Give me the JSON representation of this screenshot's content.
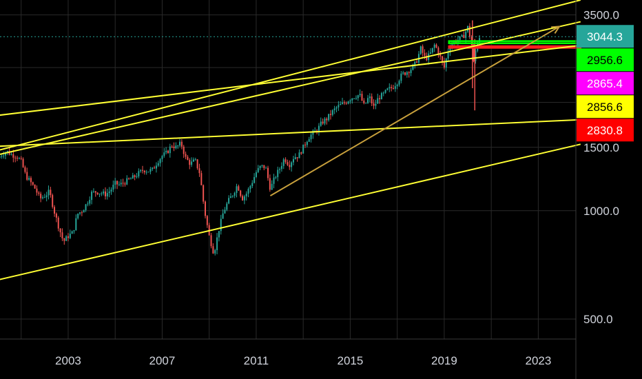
{
  "chart_data": {
    "type": "candlestick",
    "y_scale": "log",
    "ylim": [
      440,
      3850
    ],
    "xlim": [
      2000.1,
      2024.6
    ],
    "grid": true,
    "colors": {
      "background": "#000000",
      "grid": "#2a2a2a",
      "up_candle": "#26a69a",
      "down_candle": "#ef5350",
      "trendline": "#ffff33",
      "channel_arrow": "#c8a03c",
      "last_price_line": "#26a69a"
    },
    "y_ticks": [
      {
        "value": 3500,
        "label": "3500.0"
      },
      {
        "value": 1500,
        "label": "1500.0"
      },
      {
        "value": 1000,
        "label": "1000.0"
      },
      {
        "value": 500,
        "label": "500.0"
      }
    ],
    "x_ticks": [
      {
        "value": 2003,
        "label": "2003"
      },
      {
        "value": 2007,
        "label": "2007"
      },
      {
        "value": 2011,
        "label": "2011"
      },
      {
        "value": 2015,
        "label": "2015"
      },
      {
        "value": 2019,
        "label": "2019"
      },
      {
        "value": 2023,
        "label": "2023"
      }
    ],
    "price_badges": [
      {
        "value": 3044.3,
        "label": "3044.3",
        "bg": "#26a69a",
        "fg": "#ffffff"
      },
      {
        "value": 2956.6,
        "label": "2956.6",
        "bg": "#00ff00",
        "fg": "#000000"
      },
      {
        "value": 2865.4,
        "label": "2865.4",
        "bg": "#ff00ff",
        "fg": "#ffffff"
      },
      {
        "value": 2856.6,
        "label": "2856.6",
        "bg": "#ffff00",
        "fg": "#000000"
      },
      {
        "value": 2830.8,
        "label": "2830.8",
        "bg": "#ff0000",
        "fg": "#ffffff"
      }
    ],
    "last_price": 3044.3,
    "monthly_close": [
      [
        2000.0,
        1400
      ],
      [
        2000.2,
        1440
      ],
      [
        2000.4,
        1460
      ],
      [
        2000.6,
        1430
      ],
      [
        2000.8,
        1420
      ],
      [
        2001.0,
        1370
      ],
      [
        2001.2,
        1250
      ],
      [
        2001.4,
        1200
      ],
      [
        2001.6,
        1150
      ],
      [
        2001.8,
        1080
      ],
      [
        2002.0,
        1100
      ],
      [
        2002.2,
        1130
      ],
      [
        2002.4,
        1000
      ],
      [
        2002.6,
        900
      ],
      [
        2002.8,
        820
      ],
      [
        2003.0,
        850
      ],
      [
        2003.2,
        870
      ],
      [
        2003.4,
        980
      ],
      [
        2003.6,
        1000
      ],
      [
        2003.8,
        1050
      ],
      [
        2004.0,
        1120
      ],
      [
        2004.2,
        1130
      ],
      [
        2004.4,
        1120
      ],
      [
        2004.6,
        1110
      ],
      [
        2004.8,
        1140
      ],
      [
        2005.0,
        1190
      ],
      [
        2005.2,
        1180
      ],
      [
        2005.4,
        1200
      ],
      [
        2005.6,
        1220
      ],
      [
        2005.8,
        1240
      ],
      [
        2006.0,
        1270
      ],
      [
        2006.2,
        1300
      ],
      [
        2006.4,
        1290
      ],
      [
        2006.6,
        1300
      ],
      [
        2006.8,
        1370
      ],
      [
        2007.0,
        1420
      ],
      [
        2007.2,
        1450
      ],
      [
        2007.4,
        1520
      ],
      [
        2007.6,
        1500
      ],
      [
        2007.8,
        1540
      ],
      [
        2008.0,
        1400
      ],
      [
        2008.2,
        1350
      ],
      [
        2008.4,
        1380
      ],
      [
        2008.6,
        1270
      ],
      [
        2008.8,
        1000
      ],
      [
        2009.0,
        850
      ],
      [
        2009.2,
        760
      ],
      [
        2009.4,
        880
      ],
      [
        2009.6,
        990
      ],
      [
        2009.8,
        1060
      ],
      [
        2010.0,
        1110
      ],
      [
        2010.2,
        1180
      ],
      [
        2010.4,
        1080
      ],
      [
        2010.6,
        1120
      ],
      [
        2010.8,
        1190
      ],
      [
        2011.0,
        1280
      ],
      [
        2011.2,
        1330
      ],
      [
        2011.4,
        1320
      ],
      [
        2011.6,
        1150
      ],
      [
        2011.8,
        1240
      ],
      [
        2012.0,
        1310
      ],
      [
        2012.2,
        1400
      ],
      [
        2012.4,
        1340
      ],
      [
        2012.6,
        1410
      ],
      [
        2012.8,
        1420
      ],
      [
        2013.0,
        1500
      ],
      [
        2013.2,
        1590
      ],
      [
        2013.4,
        1640
      ],
      [
        2013.6,
        1680
      ],
      [
        2013.8,
        1760
      ],
      [
        2014.0,
        1800
      ],
      [
        2014.2,
        1870
      ],
      [
        2014.4,
        1930
      ],
      [
        2014.6,
        1970
      ],
      [
        2014.8,
        2000
      ],
      [
        2015.0,
        2050
      ],
      [
        2015.2,
        2080
      ],
      [
        2015.4,
        2100
      ],
      [
        2015.6,
        1950
      ],
      [
        2015.8,
        2080
      ],
      [
        2016.0,
        1940
      ],
      [
        2016.2,
        2060
      ],
      [
        2016.4,
        2100
      ],
      [
        2016.6,
        2170
      ],
      [
        2016.8,
        2200
      ],
      [
        2017.0,
        2280
      ],
      [
        2017.2,
        2390
      ],
      [
        2017.4,
        2430
      ],
      [
        2017.6,
        2480
      ],
      [
        2017.8,
        2580
      ],
      [
        2018.0,
        2820
      ],
      [
        2018.2,
        2640
      ],
      [
        2018.4,
        2720
      ],
      [
        2018.6,
        2900
      ],
      [
        2018.8,
        2700
      ],
      [
        2019.0,
        2500
      ],
      [
        2019.2,
        2850
      ],
      [
        2019.4,
        2940
      ],
      [
        2019.6,
        2990
      ],
      [
        2019.8,
        3040
      ],
      [
        2020.0,
        3230
      ],
      [
        2020.15,
        2950
      ],
      [
        2020.25,
        2580
      ],
      [
        2020.4,
        2950
      ],
      [
        2020.5,
        3044
      ]
    ],
    "trendlines": [
      {
        "from": [
          2000.0,
          1470
        ],
        "to": [
          2024.8,
          3850
        ]
      },
      {
        "from": [
          2000.0,
          1430
        ],
        "to": [
          2024.8,
          3350
        ]
      },
      {
        "from": [
          2000.0,
          1840
        ],
        "to": [
          2024.8,
          2880
        ]
      },
      {
        "from": [
          2000.0,
          1510
        ],
        "to": [
          2024.8,
          1790
        ]
      },
      {
        "from": [
          2000.0,
          642
        ],
        "to": [
          2024.8,
          1530
        ]
      }
    ],
    "arrow": {
      "from": [
        2011.6,
        1100
      ],
      "to": [
        2023.9,
        3250
      ]
    },
    "zones": [
      {
        "x0": 2019.2,
        "x1": 2024.8,
        "y_top": 2960,
        "y_bottom": 2920,
        "color": "#00ff00"
      },
      {
        "x0": 2019.2,
        "x1": 2024.8,
        "y_top": 2865,
        "y_bottom": 2835,
        "color": "#ff2020"
      }
    ]
  }
}
